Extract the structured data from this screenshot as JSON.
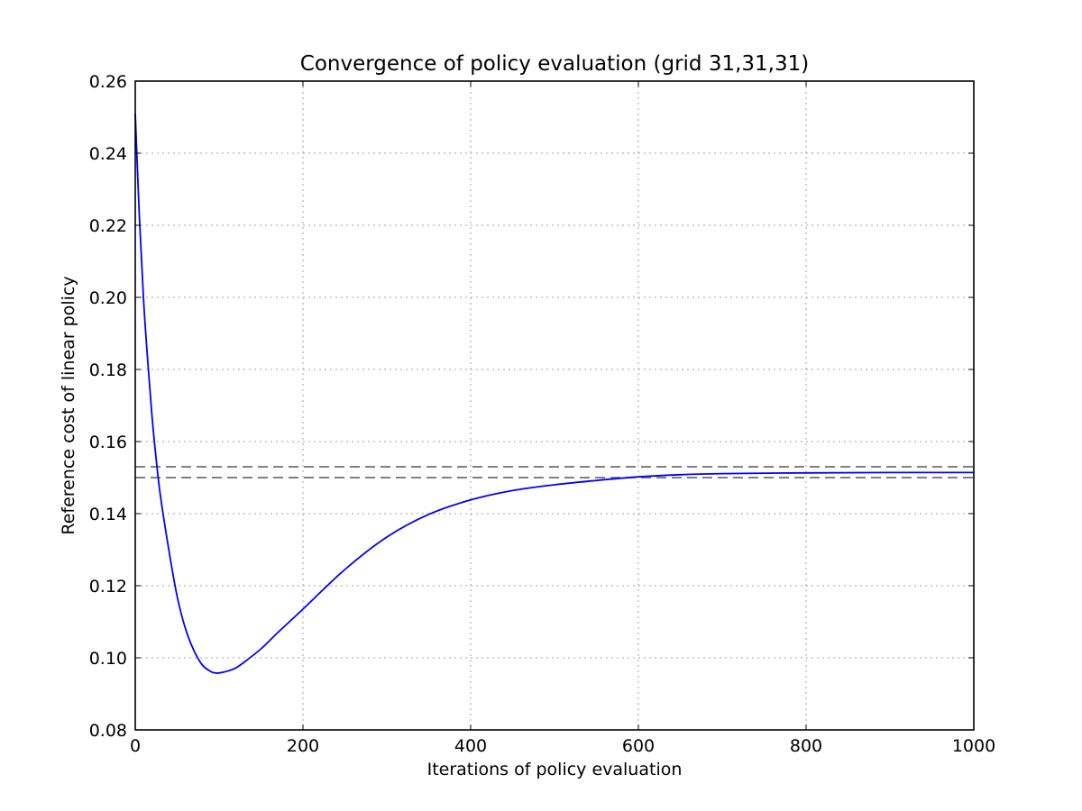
{
  "chart_data": {
    "type": "line",
    "title": "Convergence of policy evaluation (grid 31,31,31)",
    "xlabel": "Iterations of policy evaluation",
    "ylabel": "Reference cost of linear policy",
    "xlim": [
      0,
      1000
    ],
    "ylim": [
      0.08,
      0.26
    ],
    "xticks": [
      0,
      200,
      400,
      600,
      800,
      1000
    ],
    "xtick_labels": [
      "0",
      "200",
      "400",
      "600",
      "800",
      "1000"
    ],
    "yticks": [
      0.08,
      0.1,
      0.12,
      0.14,
      0.16,
      0.18,
      0.2,
      0.22,
      0.24,
      0.26
    ],
    "ytick_labels": [
      "0.08",
      "0.10",
      "0.12",
      "0.14",
      "0.16",
      "0.18",
      "0.20",
      "0.22",
      "0.24",
      "0.26"
    ],
    "grid": true,
    "series": [
      {
        "color": "#0000ff",
        "x": [
          0,
          5,
          10,
          15,
          20,
          25,
          30,
          40,
          50,
          60,
          70,
          80,
          90,
          95,
          100,
          110,
          120,
          130,
          150,
          170,
          200,
          250,
          300,
          350,
          400,
          450,
          500,
          550,
          600,
          650,
          700,
          800,
          900,
          1000
        ],
        "y": [
          0.251,
          0.222,
          0.199,
          0.182,
          0.167,
          0.155,
          0.145,
          0.13,
          0.117,
          0.108,
          0.102,
          0.098,
          0.0962,
          0.0958,
          0.0958,
          0.0963,
          0.0972,
          0.0988,
          0.1025,
          0.107,
          0.1135,
          0.1245,
          0.1335,
          0.1398,
          0.1438,
          0.1464,
          0.148,
          0.1492,
          0.1502,
          0.1508,
          0.1511,
          0.1513,
          0.1514,
          0.1514
        ]
      }
    ],
    "reference_lines": [
      {
        "y": 0.153,
        "color": "#808080",
        "style": "dashed"
      },
      {
        "y": 0.15,
        "color": "#808080",
        "style": "dashed"
      }
    ]
  }
}
